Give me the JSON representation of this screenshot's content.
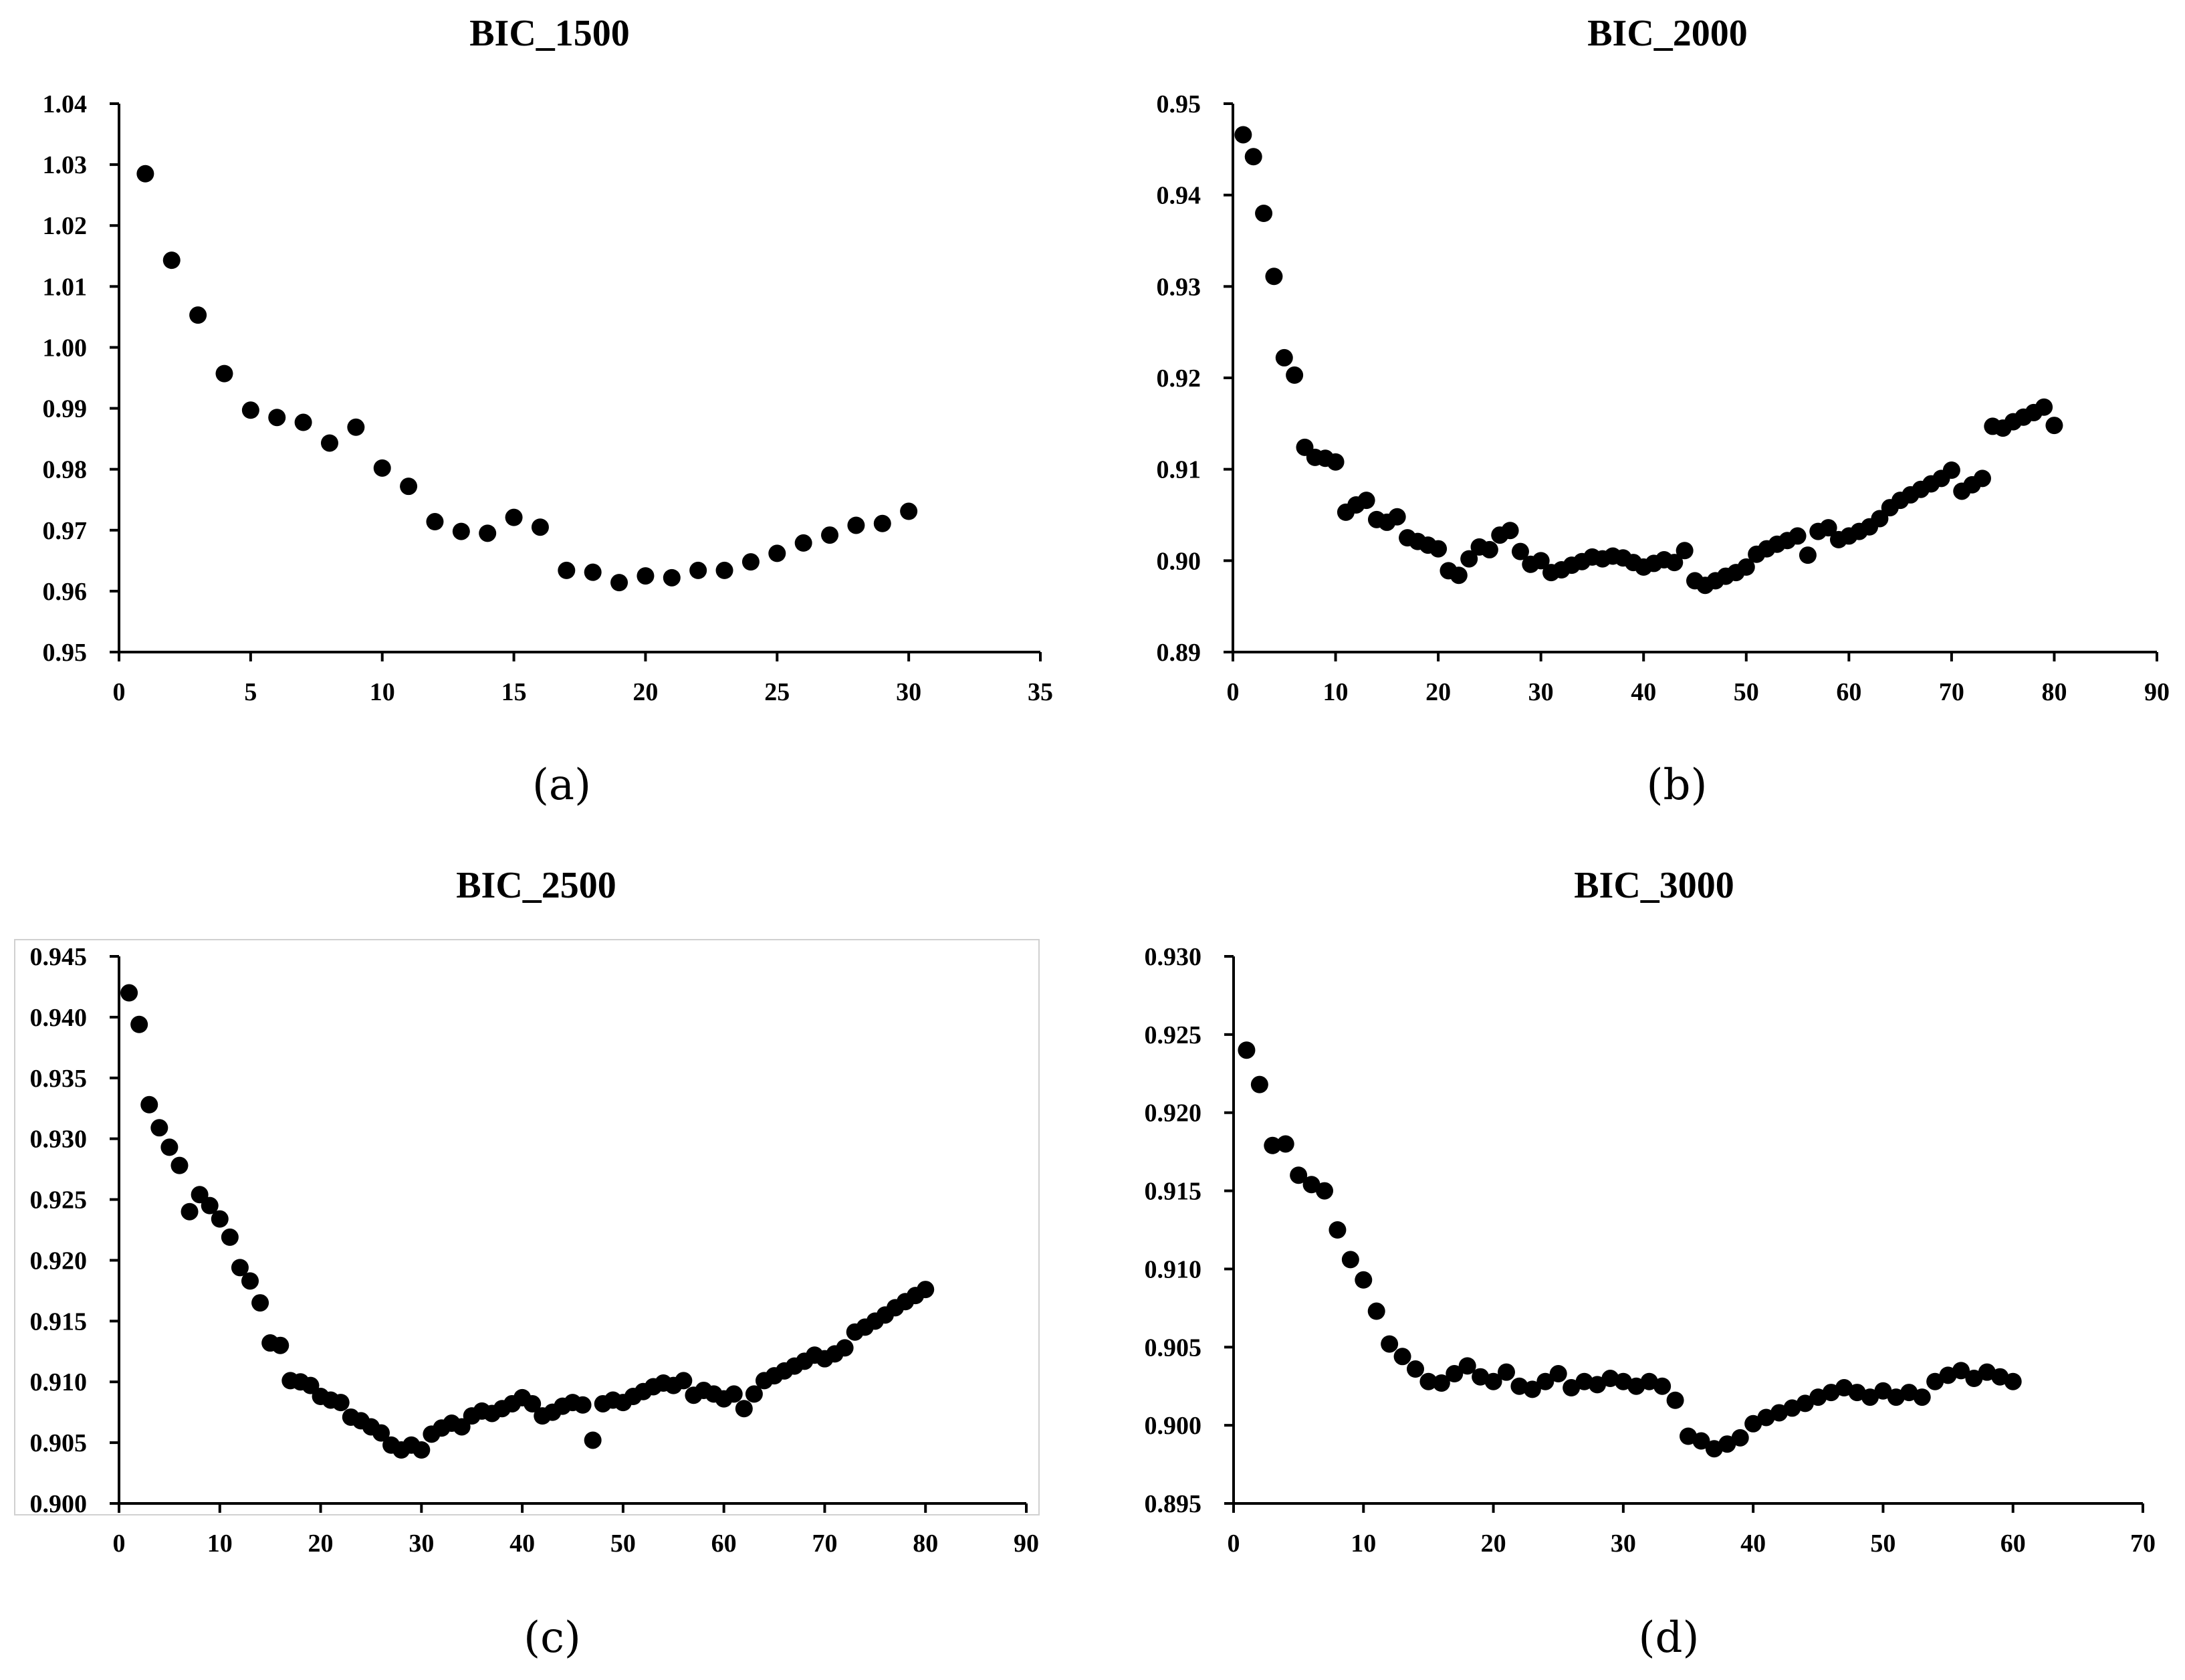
{
  "chart_data": [
    {
      "type": "scatter",
      "panel_label": "(a)",
      "title": "BIC_1500",
      "xlabel": "",
      "ylabel": "",
      "xlim": [
        0,
        35
      ],
      "xticks": [
        0,
        5,
        10,
        15,
        20,
        25,
        30,
        35
      ],
      "xtick_labels": [
        "0",
        "5",
        "10",
        "15",
        "20",
        "25",
        "30",
        "35"
      ],
      "ylim": [
        0.95,
        1.04
      ],
      "yticks": [
        0.95,
        0.96,
        0.97,
        0.98,
        0.99,
        1.0,
        1.01,
        1.02,
        1.03,
        1.04
      ],
      "ytick_labels": [
        "0.95",
        "0.96",
        "0.97",
        "0.98",
        "0.99",
        "1.00",
        "1.01",
        "1.02",
        "1.03",
        "1.04"
      ],
      "x": [
        1,
        2,
        3,
        4,
        5,
        6,
        7,
        8,
        9,
        10,
        11,
        12,
        13,
        14,
        15,
        16,
        17,
        18,
        19,
        20,
        21,
        22,
        23,
        24,
        25,
        26,
        27,
        28,
        29,
        30
      ],
      "y": [
        1.0285,
        1.0143,
        1.0053,
        0.9957,
        0.9897,
        0.9885,
        0.9877,
        0.9843,
        0.9869,
        0.9802,
        0.9772,
        0.9714,
        0.9698,
        0.9695,
        0.9721,
        0.9705,
        0.9634,
        0.9631,
        0.9614,
        0.9625,
        0.9622,
        0.9634,
        0.9634,
        0.9648,
        0.9662,
        0.9679,
        0.9692,
        0.9708,
        0.9711,
        0.9731
      ]
    },
    {
      "type": "scatter",
      "panel_label": "(b)",
      "title": "BIC_2000",
      "xlabel": "",
      "ylabel": "",
      "xlim": [
        0,
        90
      ],
      "xticks": [
        0,
        10,
        20,
        30,
        40,
        50,
        60,
        70,
        80,
        90
      ],
      "xtick_labels": [
        "0",
        "10",
        "20",
        "30",
        "40",
        "50",
        "60",
        "70",
        "80",
        "90"
      ],
      "ylim": [
        0.89,
        0.95
      ],
      "yticks": [
        0.89,
        0.9,
        0.91,
        0.92,
        0.93,
        0.94,
        0.95
      ],
      "ytick_labels": [
        "0.89",
        "0.90",
        "0.91",
        "0.92",
        "0.93",
        "0.94",
        "0.95"
      ],
      "x": [
        1,
        2,
        3,
        4,
        5,
        6,
        7,
        8,
        9,
        10,
        11,
        12,
        13,
        14,
        15,
        16,
        17,
        18,
        19,
        20,
        21,
        22,
        23,
        24,
        25,
        26,
        27,
        28,
        29,
        30,
        31,
        32,
        33,
        34,
        35,
        36,
        37,
        38,
        39,
        40,
        41,
        42,
        43,
        44,
        45,
        46,
        47,
        48,
        49,
        50,
        51,
        52,
        53,
        54,
        55,
        56,
        57,
        58,
        59,
        60,
        61,
        62,
        63,
        64,
        65,
        66,
        67,
        68,
        69,
        70,
        71,
        72,
        73,
        74,
        75,
        76,
        77,
        78,
        79,
        80
      ],
      "y": [
        0.9466,
        0.9442,
        0.938,
        0.9311,
        0.9222,
        0.9203,
        0.9124,
        0.9113,
        0.9112,
        0.9108,
        0.9053,
        0.9061,
        0.9066,
        0.9045,
        0.9042,
        0.9048,
        0.9025,
        0.9021,
        0.9017,
        0.9013,
        0.8989,
        0.8984,
        0.9002,
        0.9015,
        0.9012,
        0.9028,
        0.9033,
        0.901,
        0.8996,
        0.9,
        0.8987,
        0.899,
        0.8995,
        0.8999,
        0.9004,
        0.9002,
        0.9005,
        0.9003,
        0.8998,
        0.8993,
        0.8997,
        0.9001,
        0.8998,
        0.9011,
        0.8978,
        0.8973,
        0.8978,
        0.8983,
        0.8987,
        0.8993,
        0.9007,
        0.9013,
        0.9018,
        0.9022,
        0.9027,
        0.9006,
        0.9032,
        0.9036,
        0.9023,
        0.9027,
        0.9032,
        0.9037,
        0.9046,
        0.9058,
        0.9066,
        0.9072,
        0.9078,
        0.9084,
        0.909,
        0.9099,
        0.9076,
        0.9083,
        0.909,
        0.9147,
        0.9145,
        0.9152,
        0.9157,
        0.9162,
        0.9168,
        0.9148
      ]
    },
    {
      "type": "scatter",
      "panel_label": "(c)",
      "title": "BIC_2500",
      "xlabel": "",
      "ylabel": "",
      "xlim": [
        0,
        90
      ],
      "xticks": [
        0,
        10,
        20,
        30,
        40,
        50,
        60,
        70,
        80,
        90
      ],
      "xtick_labels": [
        "0",
        "10",
        "20",
        "30",
        "40",
        "50",
        "60",
        "70",
        "80",
        "90"
      ],
      "ylim": [
        0.9,
        0.945
      ],
      "yticks": [
        0.9,
        0.905,
        0.91,
        0.915,
        0.92,
        0.925,
        0.93,
        0.935,
        0.94,
        0.945
      ],
      "ytick_labels": [
        "0.900",
        "0.905",
        "0.910",
        "0.915",
        "0.920",
        "0.925",
        "0.930",
        "0.935",
        "0.940",
        "0.945"
      ],
      "x": [
        1,
        2,
        3,
        4,
        5,
        6,
        7,
        8,
        9,
        10,
        11,
        12,
        13,
        14,
        15,
        16,
        17,
        18,
        19,
        20,
        21,
        22,
        23,
        24,
        25,
        26,
        27,
        28,
        29,
        30,
        31,
        32,
        33,
        34,
        35,
        36,
        37,
        38,
        39,
        40,
        41,
        42,
        43,
        44,
        45,
        46,
        47,
        48,
        49,
        50,
        51,
        52,
        53,
        54,
        55,
        56,
        57,
        58,
        59,
        60,
        61,
        62,
        63,
        64,
        65,
        66,
        67,
        68,
        69,
        70,
        71,
        72,
        73,
        74,
        75,
        76,
        77,
        78,
        79,
        80
      ],
      "y": [
        0.942,
        0.9394,
        0.9328,
        0.9309,
        0.9293,
        0.9278,
        0.924,
        0.9254,
        0.9245,
        0.9234,
        0.9219,
        0.9194,
        0.9183,
        0.9165,
        0.9132,
        0.913,
        0.9101,
        0.91,
        0.9097,
        0.9088,
        0.9085,
        0.9083,
        0.9071,
        0.9068,
        0.9063,
        0.9058,
        0.9048,
        0.9044,
        0.9048,
        0.9044,
        0.9057,
        0.9062,
        0.9066,
        0.9063,
        0.9072,
        0.9076,
        0.9074,
        0.9078,
        0.9082,
        0.9087,
        0.9082,
        0.9072,
        0.9075,
        0.908,
        0.9083,
        0.9081,
        0.9052,
        0.9082,
        0.9085,
        0.9083,
        0.9088,
        0.9092,
        0.9096,
        0.9099,
        0.9097,
        0.9101,
        0.9089,
        0.9093,
        0.909,
        0.9086,
        0.909,
        0.9078,
        0.909,
        0.9101,
        0.9105,
        0.9109,
        0.9113,
        0.9117,
        0.9122,
        0.9119,
        0.9123,
        0.9128,
        0.9141,
        0.9145,
        0.915,
        0.9155,
        0.9161,
        0.9166,
        0.9171,
        0.9176
      ]
    },
    {
      "type": "scatter",
      "panel_label": "(d)",
      "title": "BIC_3000",
      "xlabel": "",
      "ylabel": "",
      "xlim": [
        0,
        70
      ],
      "xticks": [
        0,
        10,
        20,
        30,
        40,
        50,
        60,
        70
      ],
      "xtick_labels": [
        "0",
        "10",
        "20",
        "30",
        "40",
        "50",
        "60",
        "70"
      ],
      "ylim": [
        0.895,
        0.93
      ],
      "yticks": [
        0.895,
        0.9,
        0.905,
        0.91,
        0.915,
        0.92,
        0.925,
        0.93
      ],
      "ytick_labels": [
        "0.895",
        "0.900",
        "0.905",
        "0.910",
        "0.915",
        "0.920",
        "0.925",
        "0.930"
      ],
      "x": [
        1,
        2,
        3,
        4,
        5,
        6,
        7,
        8,
        9,
        10,
        11,
        12,
        13,
        14,
        15,
        16,
        17,
        18,
        19,
        20,
        21,
        22,
        23,
        24,
        25,
        26,
        27,
        28,
        29,
        30,
        31,
        32,
        33,
        34,
        35,
        36,
        37,
        38,
        39,
        40,
        41,
        42,
        43,
        44,
        45,
        46,
        47,
        48,
        49,
        50,
        51,
        52,
        53,
        54,
        55,
        56,
        57,
        58,
        59,
        60
      ],
      "y": [
        0.924,
        0.9218,
        0.9179,
        0.918,
        0.916,
        0.9154,
        0.915,
        0.9125,
        0.9106,
        0.9093,
        0.9073,
        0.9052,
        0.9044,
        0.9036,
        0.9028,
        0.9027,
        0.9033,
        0.9038,
        0.9031,
        0.9028,
        0.9034,
        0.9025,
        0.9023,
        0.9028,
        0.9033,
        0.9024,
        0.9028,
        0.9026,
        0.903,
        0.9028,
        0.9025,
        0.9028,
        0.9025,
        0.9016,
        0.8993,
        0.899,
        0.8985,
        0.8988,
        0.8992,
        0.9001,
        0.9005,
        0.9008,
        0.9011,
        0.9014,
        0.9018,
        0.9021,
        0.9024,
        0.9021,
        0.9018,
        0.9022,
        0.9018,
        0.9021,
        0.9018,
        0.9028,
        0.9032,
        0.9035,
        0.903,
        0.9034,
        0.9031,
        0.9028
      ]
    }
  ]
}
